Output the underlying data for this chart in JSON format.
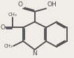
{
  "bg_color": "#f0ede8",
  "bond_color": "#4a4a4a",
  "bond_width": 1.3,
  "xlim": [
    0.0,
    1.0
  ],
  "ylim": [
    0.0,
    1.0
  ]
}
